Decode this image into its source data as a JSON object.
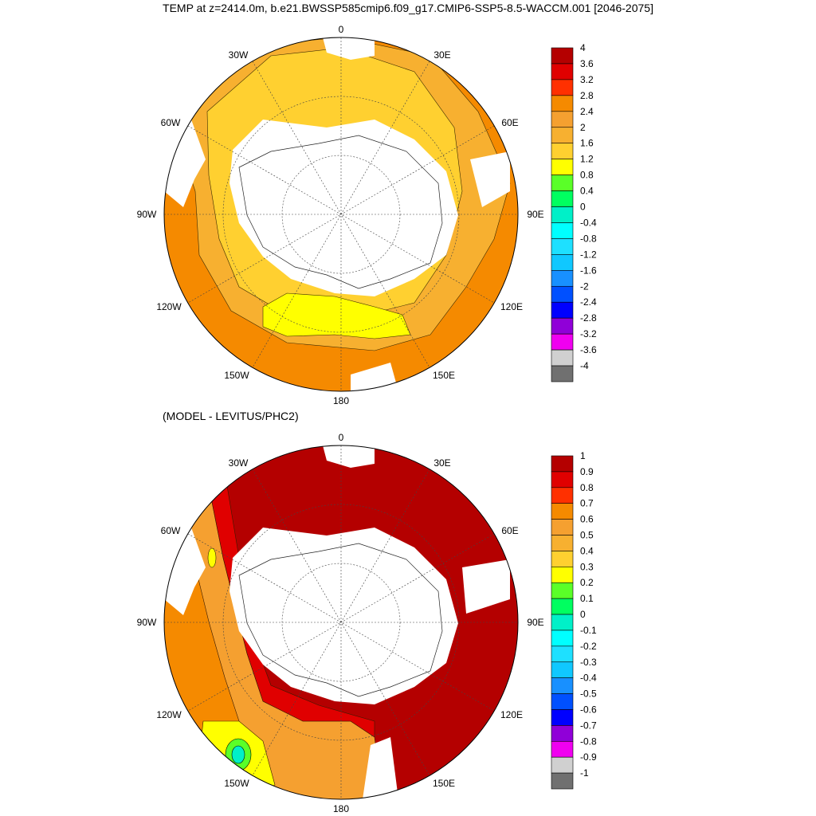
{
  "figure": {
    "title": "TEMP at z=2414.0m, b.e21.BWSSP585cmip6.f09_g17.CMIP6-SSP5-8.5-WACCM.001 [2046-2075]",
    "subtitle": "(MODEL - LEVITUS/PHC2)"
  },
  "lon_labels": [
    "0",
    "30E",
    "60E",
    "90E",
    "120E",
    "150E",
    "180",
    "150W",
    "120W",
    "90W",
    "60W",
    "30W"
  ],
  "chart_data": [
    {
      "type": "heatmap",
      "projection": "south-polar-stereographic",
      "colorbar": {
        "levels": [
          "4",
          "3.6",
          "3.2",
          "2.8",
          "2.4",
          "2",
          "1.6",
          "1.2",
          "0.8",
          "0.4",
          "0",
          "-0.4",
          "-0.8",
          "-1.2",
          "-1.6",
          "-2",
          "-2.4",
          "-2.8",
          "-3.2",
          "-3.6",
          "-4"
        ],
        "colors": [
          "#b40000",
          "#e00000",
          "#ff3000",
          "#f58a00",
          "#f5a030",
          "#f7b030",
          "#ffd030",
          "#ffff00",
          "#5aff28",
          "#00ff60",
          "#00f0c8",
          "#00ffff",
          "#1ee0ff",
          "#10c8ff",
          "#1890ff",
          "#0050ff",
          "#0000ff",
          "#9000d8",
          "#f000f0",
          "#d0d0d0",
          "#707070"
        ]
      },
      "regions": [
        {
          "value": 2.2,
          "area": "outer band, Indian and Pacific sectors"
        },
        {
          "value": 1.8,
          "area": "Atlantic sector and circumpolar band"
        },
        {
          "value": 1.4,
          "area": "Ross Sea region"
        }
      ]
    },
    {
      "type": "heatmap",
      "projection": "south-polar-stereographic",
      "colorbar": {
        "levels": [
          "1",
          "0.9",
          "0.8",
          "0.7",
          "0.6",
          "0.5",
          "0.4",
          "0.3",
          "0.2",
          "0.1",
          "0",
          "-0.1",
          "-0.2",
          "-0.3",
          "-0.4",
          "-0.5",
          "-0.6",
          "-0.7",
          "-0.8",
          "-0.9",
          "-1"
        ],
        "colors": [
          "#b40000",
          "#e00000",
          "#ff3000",
          "#f58a00",
          "#f5a030",
          "#f7b030",
          "#ffd030",
          "#ffff00",
          "#5aff28",
          "#00ff60",
          "#00f0c8",
          "#00ffff",
          "#1ee0ff",
          "#10c8ff",
          "#1890ff",
          "#0050ff",
          "#0000ff",
          "#9000d8",
          "#f000f0",
          "#d0d0d0",
          "#707070"
        ]
      },
      "regions": [
        {
          "value": 1.0,
          "area": "most of the Southern Ocean"
        },
        {
          "value": 0.85,
          "area": "Amundsen-Bellingshausen sector"
        },
        {
          "value": 0.6,
          "area": "South Pacific"
        },
        {
          "value": 0.3,
          "area": "near 140W"
        },
        {
          "value": 0.05,
          "area": "local minimum near 145W"
        }
      ]
    }
  ]
}
